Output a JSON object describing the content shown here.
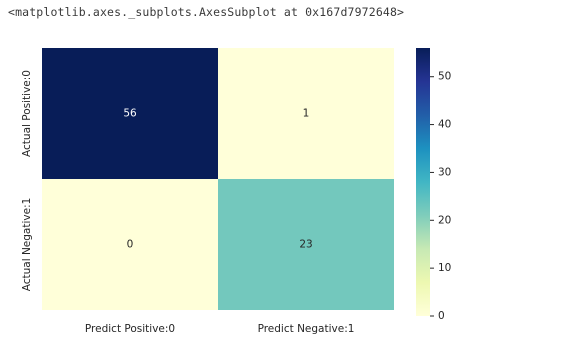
{
  "output": {
    "repr_text": "<matplotlib.axes._subplots.AxesSubplot at 0x167d7972648>"
  },
  "chart_data": {
    "type": "heatmap",
    "rows": [
      "Actual Positive:0",
      "Actual Negative:1"
    ],
    "columns": [
      "Predict Positive:0",
      "Predict Negative:1"
    ],
    "values": [
      [
        56,
        1
      ],
      [
        0,
        23
      ]
    ],
    "annotations": [
      "56",
      "1",
      "0",
      "23"
    ],
    "colormap": "YlGnBu",
    "colorbar": {
      "min": 0,
      "max": 56,
      "ticks": [
        "0",
        "10",
        "20",
        "30",
        "40",
        "50"
      ]
    },
    "colors": {
      "cell_0_0": "#081d58",
      "cell_0_1": "#ffffd9",
      "cell_1_0": "#ffffd9",
      "cell_1_1": "#73c8bd",
      "text_light": "#ffffff",
      "text_dark": "#262626"
    }
  }
}
